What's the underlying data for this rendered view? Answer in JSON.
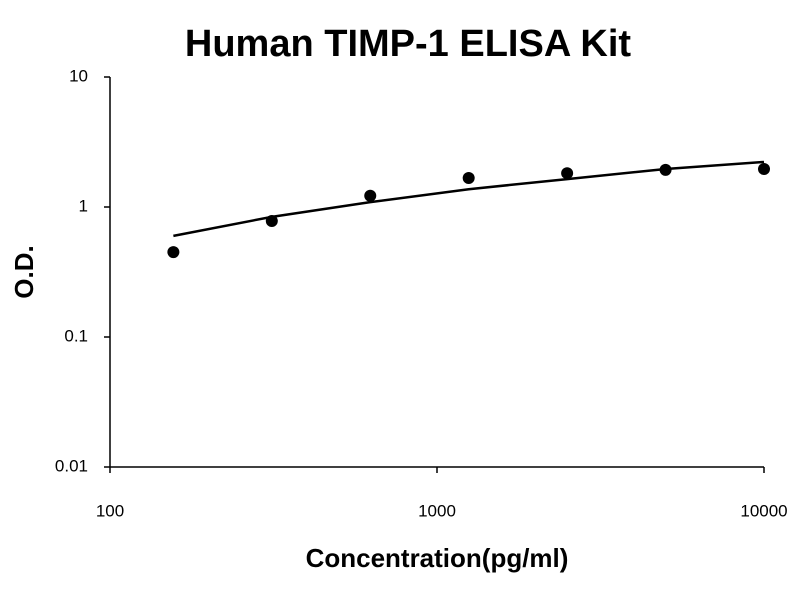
{
  "chart_data": {
    "type": "scatter",
    "title": "Human TIMP-1 ELISA Kit",
    "x_label": "Concentration(pg/ml)",
    "y_label": "O.D.",
    "x": [
      156.25,
      312.5,
      625,
      1250,
      2500,
      5000,
      10000
    ],
    "series": [
      {
        "style": "markers",
        "color": "#000000",
        "values": [
          0.45,
          0.78,
          1.22,
          1.67,
          1.82,
          1.93,
          1.96
        ]
      },
      {
        "style": "line",
        "color": "#000000",
        "values": [
          0.6,
          0.84,
          1.09,
          1.37,
          1.64,
          1.96,
          2.22
        ]
      }
    ],
    "xlim": [
      100,
      10000
    ],
    "xticks": [
      100,
      1000,
      10000
    ],
    "ylim": [
      0.01,
      10
    ],
    "yticks": [
      0.01,
      0.1,
      1,
      10
    ],
    "xscale": "log",
    "yscale": "log",
    "grid": false
  }
}
